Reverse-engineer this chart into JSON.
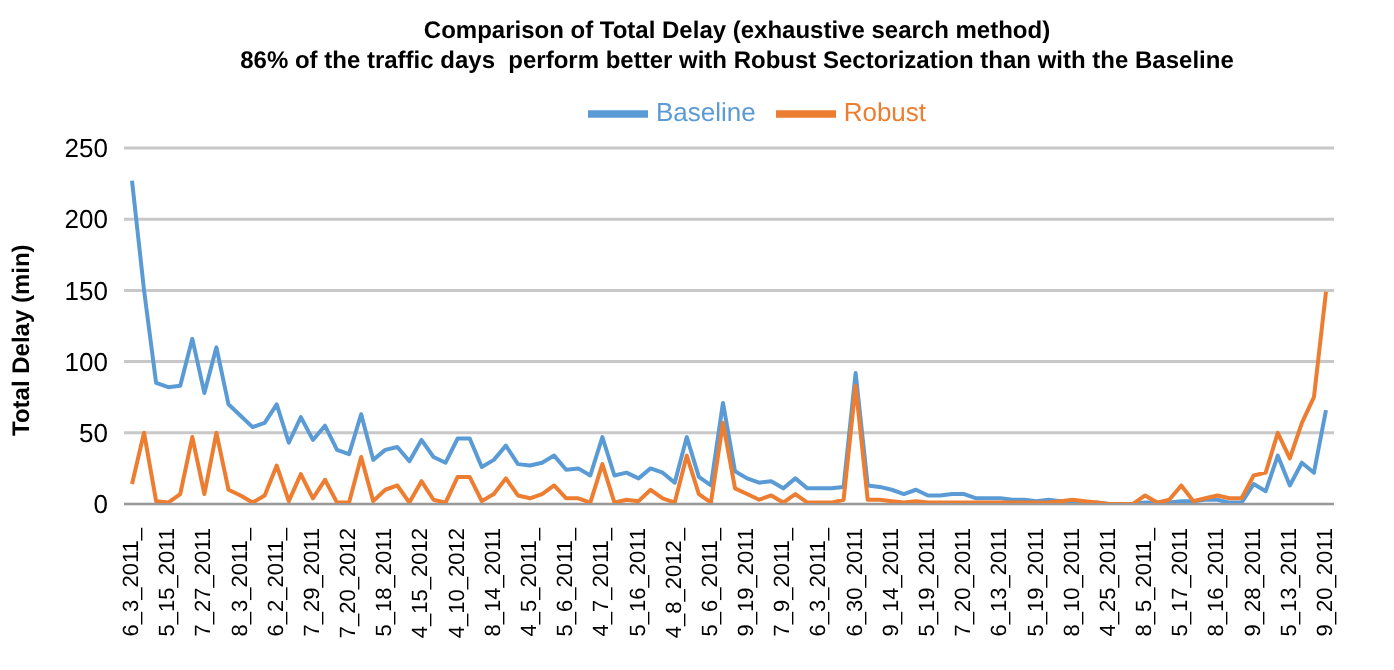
{
  "chart_data": {
    "type": "line",
    "title": "Comparison of Total Delay (exhaustive search method)",
    "subtitle": "86% of the traffic days  perform better with Robust Sectorization than with the Baseline",
    "ylabel": "Total Delay (min)",
    "categories": [
      "6_3_2011_",
      null,
      null,
      "5_15_2011",
      null,
      null,
      "7_27_2011",
      null,
      null,
      "8_3_2011_",
      null,
      null,
      "6_2_2011_",
      null,
      null,
      "7_29_2011",
      null,
      null,
      "7_20_2012",
      null,
      null,
      "5_18_2011",
      null,
      null,
      "4_15_2012",
      null,
      null,
      "4_10_2012",
      null,
      null,
      "8_14_2011",
      null,
      null,
      "4_5_2011_",
      null,
      null,
      "5_6_2011_",
      null,
      null,
      "4_7_2011_",
      null,
      null,
      "5_16_2011",
      null,
      null,
      "4_8_2012_",
      null,
      null,
      "5_6_2011_",
      null,
      null,
      "9_19_2011",
      null,
      null,
      "7_9_2011_",
      null,
      null,
      "6_3_2011_",
      null,
      null,
      "6_30_2011",
      null,
      null,
      "9_14_2011",
      null,
      null,
      "5_19_2011",
      null,
      null,
      "7_20_2011",
      null,
      null,
      "6_13_2011",
      null,
      null,
      "5_19_2011",
      null,
      null,
      "8_10_2011",
      null,
      null,
      "4_25_2011",
      null,
      null,
      "8_5_2011_",
      null,
      null,
      "5_17_2011",
      null,
      null,
      "8_16_2011",
      null,
      null,
      "9_28_2011",
      null,
      null,
      "5_13_2011",
      null,
      null,
      "9_20_2011"
    ],
    "series": [
      {
        "name": "Baseline",
        "color": "#5b9bd5",
        "values": [
          227,
          150,
          85,
          82,
          83,
          116,
          78,
          110,
          70,
          62,
          54,
          57,
          70,
          43,
          61,
          45,
          55,
          38,
          35,
          63,
          31,
          38,
          40,
          30,
          45,
          33,
          29,
          46,
          46,
          26,
          31,
          41,
          28,
          27,
          29,
          34,
          24,
          25,
          20,
          47,
          20,
          22,
          18,
          25,
          22,
          15,
          47,
          19,
          13,
          71,
          23,
          18,
          15,
          16,
          11,
          18,
          11,
          11,
          11,
          12,
          92,
          13,
          12,
          10,
          7,
          10,
          6,
          6,
          7,
          7,
          4,
          4,
          4,
          3,
          3,
          2,
          3,
          2,
          1,
          1,
          1,
          0,
          0,
          0,
          1,
          1,
          1,
          2,
          2,
          3,
          3,
          1,
          1,
          14,
          9,
          34,
          13,
          29,
          22,
          66
        ]
      },
      {
        "name": "Robust",
        "color": "#ed7d31",
        "values": [
          14,
          50,
          2,
          1,
          7,
          47,
          7,
          50,
          10,
          6,
          1,
          6,
          27,
          2,
          21,
          4,
          17,
          1,
          1,
          33,
          2,
          10,
          13,
          1,
          16,
          3,
          1,
          19,
          19,
          2,
          7,
          18,
          6,
          4,
          7,
          13,
          4,
          4,
          1,
          28,
          1,
          3,
          2,
          10,
          4,
          1,
          34,
          7,
          1,
          57,
          11,
          7,
          3,
          6,
          1,
          7,
          1,
          1,
          1,
          3,
          83,
          3,
          3,
          2,
          1,
          2,
          1,
          1,
          1,
          1,
          1,
          1,
          1,
          1,
          1,
          1,
          1,
          2,
          3,
          2,
          1,
          0,
          0,
          0,
          6,
          1,
          3,
          13,
          2,
          4,
          6,
          4,
          4,
          20,
          22,
          50,
          32,
          57,
          75,
          149
        ]
      }
    ],
    "ylim": [
      0,
      250
    ],
    "yticks": [
      0,
      50,
      100,
      150,
      200,
      250
    ],
    "grid": "y",
    "legend": "top",
    "marker": "none",
    "line_style": "solid"
  }
}
